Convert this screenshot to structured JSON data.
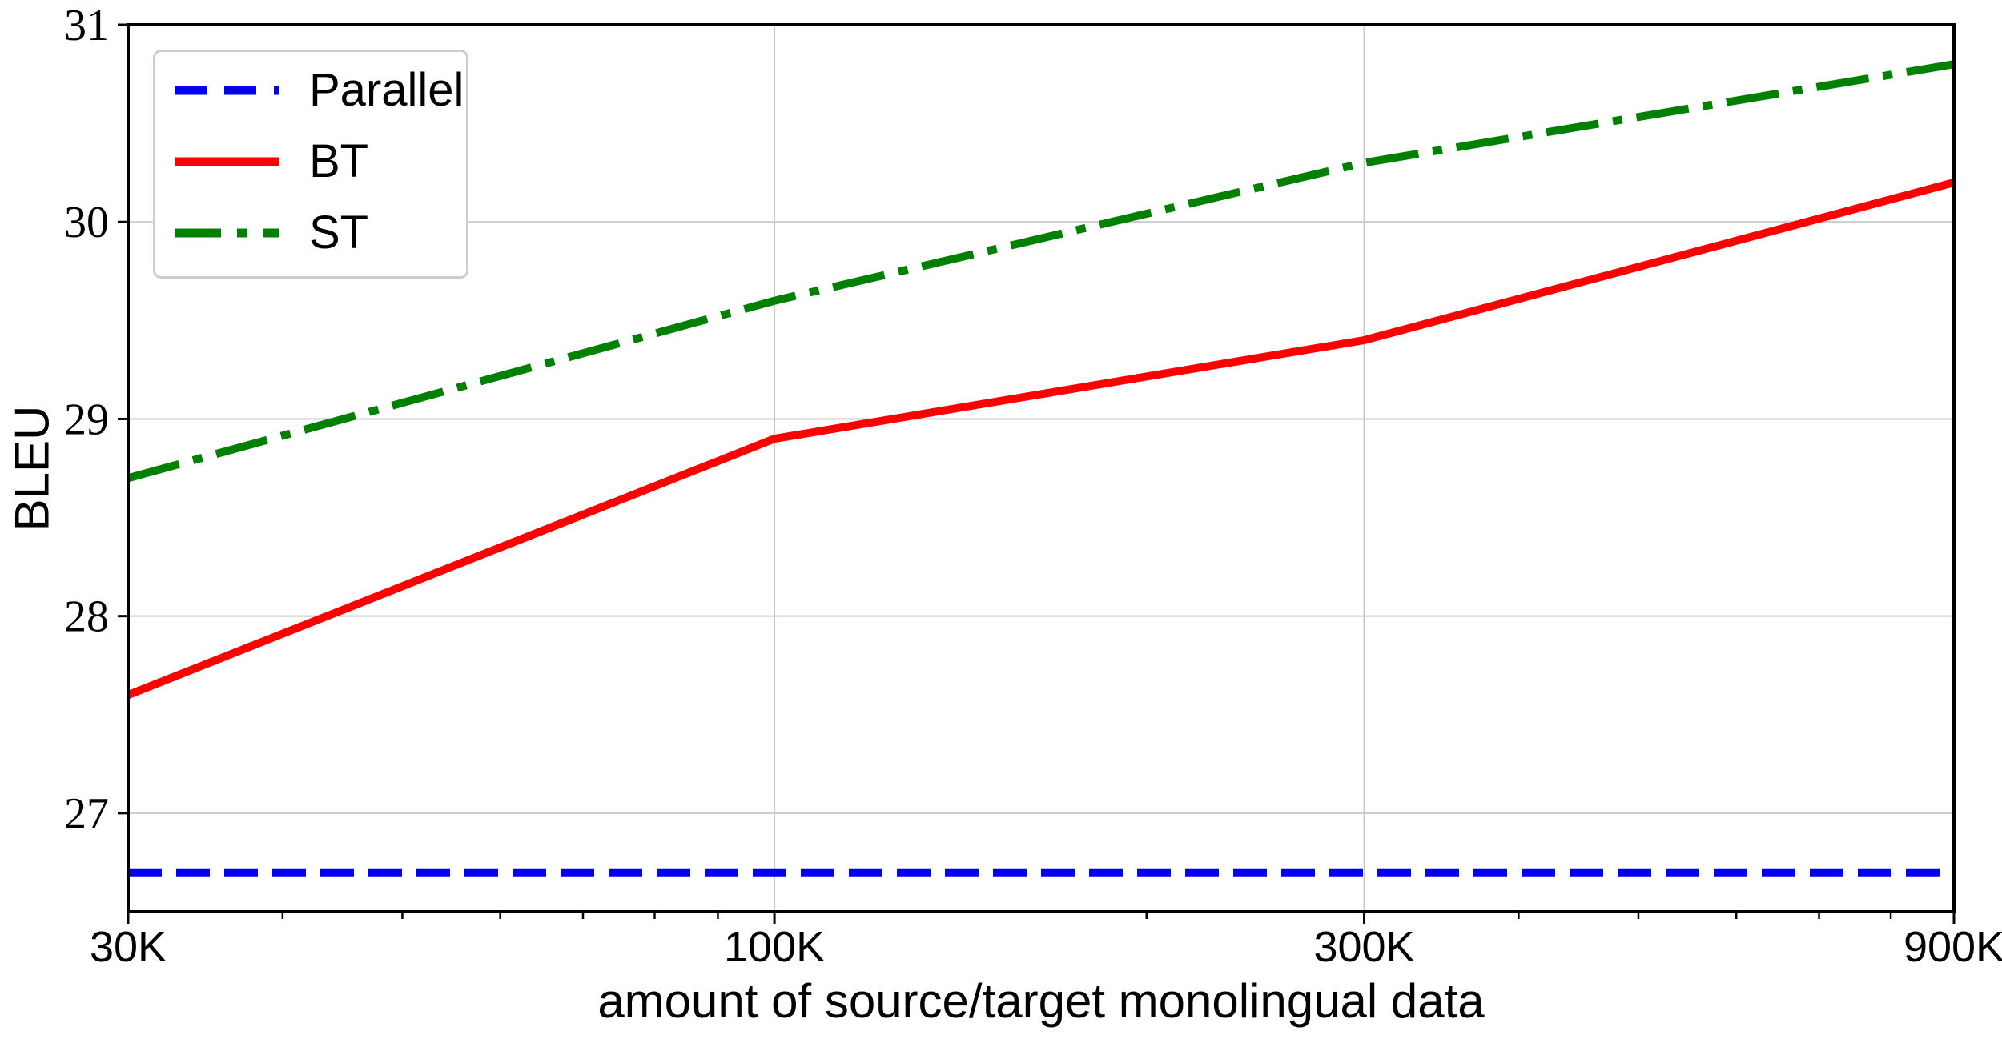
{
  "chart_data": {
    "type": "line",
    "title": "",
    "xlabel": "amount of source/target monolingual data",
    "ylabel": "BLEU",
    "x_scale": "log",
    "x": [
      30000,
      100000,
      300000,
      900000
    ],
    "xtick_labels": [
      "30K",
      "100K",
      "300K",
      "900K"
    ],
    "x_minor_ticks": [
      40000,
      50000,
      60000,
      70000,
      80000,
      90000,
      200000,
      400000,
      500000,
      600000,
      700000,
      800000
    ],
    "xlim": [
      30000,
      900000
    ],
    "ylim": [
      26.5,
      31
    ],
    "yticks": [
      27,
      28,
      29,
      30,
      31
    ],
    "ytick_labels": [
      "27",
      "28",
      "29",
      "30",
      "31"
    ],
    "grid": true,
    "grid_color": "#c9c9c9",
    "axes_color": "#000000",
    "legend_position": "upper left",
    "series": [
      {
        "name": "Parallel",
        "style": "dashed",
        "color": "#0000ee",
        "values": [
          26.7,
          26.7,
          26.7,
          26.7
        ]
      },
      {
        "name": "BT",
        "style": "solid",
        "color": "#ff0000",
        "values": [
          27.6,
          28.9,
          29.4,
          30.2
        ]
      },
      {
        "name": "ST",
        "style": "dashdot",
        "color": "#008000",
        "values": [
          28.7,
          29.6,
          30.3,
          30.8
        ]
      }
    ]
  }
}
